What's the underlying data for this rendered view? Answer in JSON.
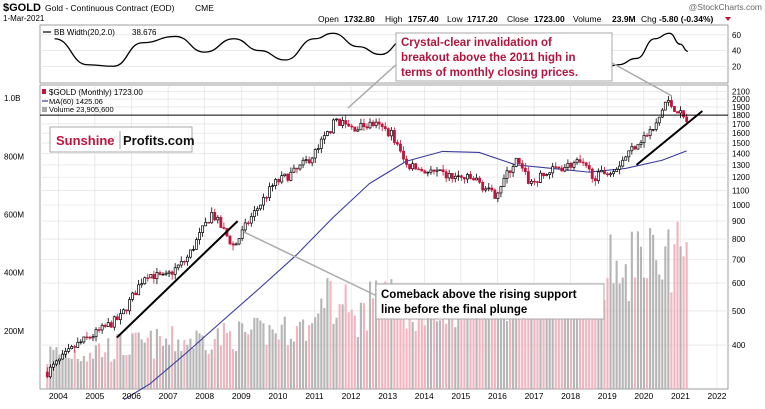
{
  "header": {
    "symbol": "$GOLD",
    "name": "Gold - Continuous Contract (EOD)",
    "exchange": "CME",
    "date": "1-Mar-2021",
    "watermark": "@StockCharts.com",
    "ohlc": {
      "open_label": "Open",
      "open": "1732.80",
      "high_label": "High",
      "high": "1757.40",
      "low_label": "Low",
      "low": "1717.20",
      "close_label": "Close",
      "close": "1723.00",
      "volume_label": "Volume",
      "volume": "23.9M",
      "chg_label": "Chg",
      "chg": "-5.80 (-0.34%)"
    }
  },
  "brand": {
    "part1": "Sunshine",
    "part2": "Profits.com"
  },
  "colors": {
    "up": "#000000",
    "down": "#c0143c",
    "ma": "#3a3aa0",
    "vol_up": "#a9a9a9",
    "vol_down": "#f0a8b4",
    "annotation": "#b4143c",
    "grid": "#dddddd"
  },
  "annotations": [
    {
      "text_lines": [
        "Crystal-clear invalidation of",
        "breakout above the 2011 high in",
        "terms of monthly closing prices."
      ]
    },
    {
      "text_lines": [
        "Comeback above the rising support",
        "line before the final plunge"
      ]
    }
  ],
  "chart_data": [
    {
      "type": "line",
      "panel": "indicator",
      "legend_label": "BB Width(20,2.0)",
      "legend_value": "38.676",
      "ylim": [
        0,
        70
      ],
      "y_ticks": [
        "60",
        "40",
        "20"
      ],
      "x": [
        2003.9,
        2004.8,
        2005.5,
        2006.3,
        2007.2,
        2008.0,
        2008.8,
        2009.5,
        2010.2,
        2011.0,
        2011.5,
        2012.2,
        2012.8,
        2013.5,
        2014.5,
        2015.5,
        2016.5,
        2017.3,
        2018.0,
        2018.8,
        2019.3,
        2019.8,
        2020.3,
        2020.7,
        2021.0,
        2021.2
      ],
      "values": [
        55,
        22,
        20,
        50,
        58,
        38,
        55,
        40,
        28,
        55,
        62,
        45,
        35,
        55,
        42,
        20,
        48,
        30,
        18,
        15,
        22,
        30,
        55,
        62,
        48,
        39
      ]
    },
    {
      "type": "candlestick",
      "panel": "price",
      "legend_symbol": "$GOLD (Monthly) 1723.00",
      "legend_ma": "MA(60) 1425.06",
      "legend_volume": "Volume 23,905,600",
      "scale": "log",
      "ylim": [
        300,
        2100
      ],
      "y_ticks": [
        "2100",
        "2000",
        "1900",
        "1800",
        "1700",
        "1600",
        "1500",
        "1400",
        "1300",
        "1200",
        "1100",
        "1000",
        "900",
        "800",
        "700",
        "600",
        "500",
        "400"
      ],
      "x_ticks": [
        "2004",
        "2005",
        "2006",
        "2007",
        "2008",
        "2009",
        "2010",
        "2011",
        "2012",
        "2013",
        "2014",
        "2015",
        "2016",
        "2017",
        "2018",
        "2019",
        "2020",
        "2021",
        "2022"
      ],
      "horizontal_line": 1800,
      "close_anchors": {
        "x": [
          2003.7,
          2004.5,
          2005.0,
          2005.7,
          2006.4,
          2006.9,
          2007.5,
          2008.2,
          2008.8,
          2009.2,
          2009.9,
          2010.5,
          2011.0,
          2011.6,
          2012.0,
          2012.6,
          2013.1,
          2013.5,
          2014.0,
          2014.8,
          2015.4,
          2015.9,
          2016.5,
          2016.9,
          2017.6,
          2018.2,
          2018.7,
          2019.3,
          2019.8,
          2020.3,
          2020.6,
          2020.9,
          2021.17
        ],
        "close": [
          335,
          400,
          430,
          480,
          640,
          620,
          700,
          950,
          760,
          900,
          1150,
          1250,
          1400,
          1750,
          1650,
          1700,
          1600,
          1300,
          1250,
          1200,
          1180,
          1060,
          1340,
          1150,
          1270,
          1320,
          1200,
          1300,
          1500,
          1650,
          1970,
          1870,
          1723
        ]
      },
      "ma60": {
        "x": [
          2005.8,
          2006.5,
          2007.5,
          2008.5,
          2009.5,
          2010.5,
          2011.5,
          2012.5,
          2013.5,
          2014.5,
          2015.5,
          2016.5,
          2017.5,
          2018.5,
          2019.5,
          2020.5,
          2021.17
        ],
        "values": [
          280,
          310,
          380,
          470,
          580,
          720,
          920,
          1150,
          1330,
          1420,
          1410,
          1300,
          1270,
          1240,
          1270,
          1340,
          1425
        ]
      },
      "trendlines": [
        {
          "label": "rising support 2005-2008",
          "from": [
            2005.6,
            420
          ],
          "to": [
            2008.9,
            900
          ]
        },
        {
          "label": "rising support 2019-2021",
          "from": [
            2019.8,
            1300
          ],
          "to": [
            2021.6,
            1850
          ]
        }
      ]
    },
    {
      "type": "bar",
      "panel": "volume",
      "y_ticks": [
        "1.0B",
        "800M",
        "600M",
        "400M",
        "200M"
      ],
      "ylim": [
        0,
        1100
      ],
      "unit": "M"
    }
  ]
}
